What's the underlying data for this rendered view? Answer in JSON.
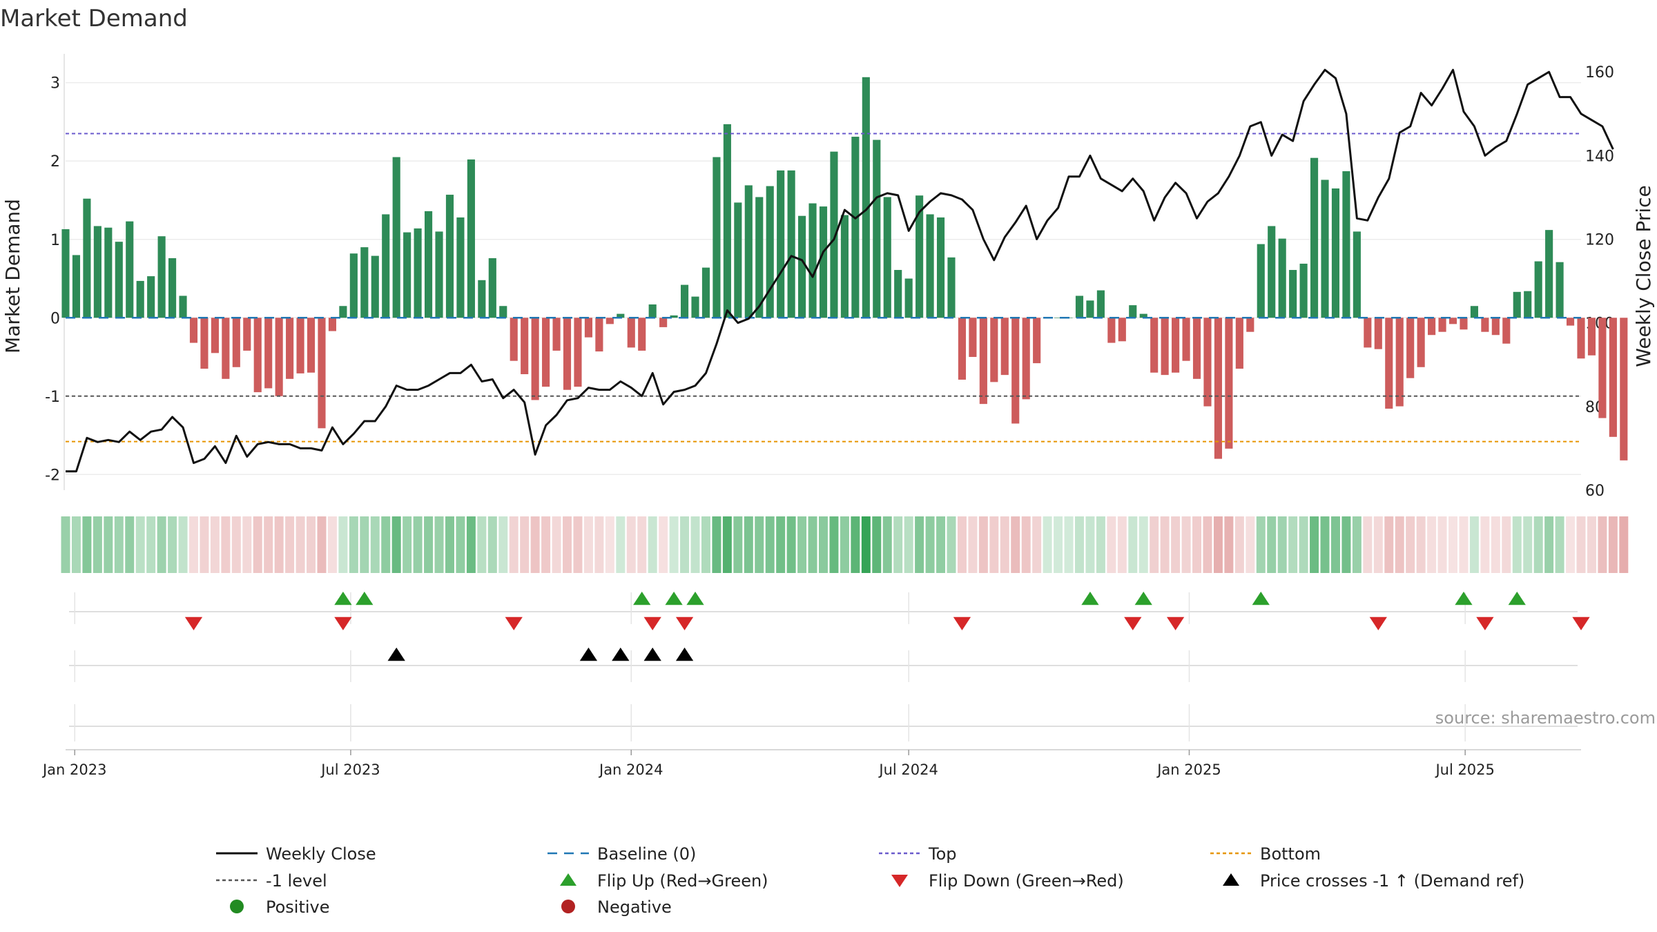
{
  "title": "Market Demand",
  "source": "source: sharemaestro.com",
  "colors": {
    "pos_bar": "#2e8b57",
    "neg_bar": "#cd5c5c",
    "price": "#111111",
    "baseline": "#1f77b4",
    "top": "#6a5acd",
    "minus1": "#555555",
    "bottom": "#e69500",
    "flip_up": "#2ca02c",
    "flip_down": "#d62728",
    "cross": "#000000",
    "positive_dot": "#228b22",
    "negative_dot": "#b22222"
  },
  "chart_data": {
    "type": "bar",
    "title": "Market Demand",
    "ylabel": "Market Demand",
    "y2label": "Weekly Close Price",
    "ylim": [
      -2.2,
      3.35
    ],
    "y2lim": [
      60,
      164
    ],
    "yticks": [
      -2,
      -1,
      0,
      1,
      2,
      3
    ],
    "y2ticks": [
      60,
      80,
      100,
      120,
      140,
      160
    ],
    "x_start": "2022-12-26",
    "x_end": "2025-09-15",
    "xticks": [
      {
        "date": "2023-01-01",
        "label": "Jan 2023"
      },
      {
        "date": "2023-07-01",
        "label": "Jul 2023"
      },
      {
        "date": "2024-01-01",
        "label": "Jan 2024"
      },
      {
        "date": "2024-07-01",
        "label": "Jul 2024"
      },
      {
        "date": "2025-01-01",
        "label": "Jan 2025"
      },
      {
        "date": "2025-07-01",
        "label": "Jul 2025"
      }
    ],
    "first_week": "2022-12-26",
    "week_interval_days": 7,
    "demand": [
      1.13,
      0.8,
      1.52,
      1.17,
      1.15,
      0.97,
      1.23,
      0.47,
      0.53,
      1.04,
      0.76,
      0.28,
      -0.32,
      -0.65,
      -0.45,
      -0.78,
      -0.63,
      -0.42,
      -0.95,
      -0.9,
      -1.0,
      -0.78,
      -0.71,
      -0.7,
      -1.41,
      -0.17,
      0.15,
      0.82,
      0.9,
      0.79,
      1.32,
      2.05,
      1.09,
      1.14,
      1.36,
      1.1,
      1.57,
      1.28,
      2.02,
      0.48,
      0.76,
      0.15,
      -0.55,
      -0.72,
      -1.05,
      -0.88,
      -0.42,
      -0.92,
      -0.88,
      -0.25,
      -0.43,
      -0.08,
      0.05,
      -0.38,
      -0.42,
      0.17,
      -0.12,
      0.03,
      0.42,
      0.27,
      0.64,
      2.05,
      2.47,
      1.47,
      1.69,
      1.54,
      1.68,
      1.88,
      1.88,
      1.3,
      1.46,
      1.42,
      2.12,
      1.31,
      2.31,
      3.07,
      2.27,
      1.54,
      0.61,
      0.5,
      1.56,
      1.32,
      1.28,
      0.77,
      -0.79,
      -0.5,
      -1.1,
      -0.82,
      -0.73,
      -1.35,
      -1.04,
      -0.58,
      0.0,
      0.0,
      0.0,
      0.28,
      0.22,
      0.35,
      -0.32,
      -0.3,
      0.16,
      0.05,
      -0.7,
      -0.73,
      -0.7,
      -0.55,
      -0.78,
      -1.13,
      -1.8,
      -1.67,
      -0.65,
      -0.18,
      0.94,
      1.17,
      1.01,
      0.61,
      0.69,
      2.04,
      1.76,
      1.65,
      1.87,
      1.1,
      -0.38,
      -0.4,
      -1.16,
      -1.13,
      -0.77,
      -0.63,
      -0.22,
      -0.18,
      -0.08,
      -0.15,
      0.15,
      -0.18,
      -0.22,
      -0.33,
      0.33,
      0.34,
      0.72,
      1.12,
      0.71,
      -0.1,
      -0.52,
      -0.48,
      -1.28,
      -1.52,
      -1.82
    ],
    "price": [
      64.5,
      64.5,
      72.5,
      71.5,
      72.0,
      71.5,
      74.0,
      72.0,
      74.0,
      74.5,
      77.5,
      75.0,
      66.5,
      67.5,
      70.5,
      66.5,
      73.0,
      68.0,
      71.0,
      71.5,
      71.0,
      71.0,
      70.0,
      70.0,
      69.5,
      75.0,
      71.0,
      73.5,
      76.5,
      76.5,
      80.0,
      85.0,
      84.0,
      84.0,
      85.0,
      86.5,
      88.0,
      88.0,
      90.0,
      86.0,
      86.5,
      82.0,
      84.0,
      81.0,
      68.5,
      75.5,
      78.0,
      81.5,
      82.0,
      84.5,
      84.0,
      84.0,
      86.0,
      84.5,
      82.5,
      88.0,
      80.5,
      83.5,
      84.0,
      85.0,
      88.0,
      95.0,
      103.0,
      100.0,
      101.0,
      104.0,
      108.0,
      112.0,
      116.0,
      115.0,
      111.0,
      117.0,
      120.0,
      127.0,
      125.0,
      127.0,
      130.0,
      131.0,
      130.5,
      122.0,
      126.5,
      129.0,
      131.0,
      130.5,
      129.5,
      127.0,
      120.0,
      115.0,
      120.5,
      124.0,
      128.0,
      120.0,
      124.5,
      127.5,
      135.0,
      135.0,
      140.0,
      134.5,
      133.0,
      131.5,
      134.5,
      131.5,
      124.5,
      130.0,
      133.5,
      131.0,
      125.0,
      129.0,
      131.0,
      135.0,
      140.0,
      147.0,
      148.0,
      140.0,
      145.0,
      143.5,
      153.0,
      157.0,
      160.5,
      158.5,
      150.0,
      125.0,
      124.5,
      130.0,
      134.5,
      145.5,
      147.0,
      155.0,
      152.0,
      156.0,
      160.5,
      150.5,
      147.0,
      140.0,
      142.0,
      143.5,
      150.0,
      157.0,
      158.5,
      160.0,
      154.0,
      154.0,
      150.0,
      148.5,
      147.0,
      141.5
    ],
    "top_level": 2.35,
    "minus1_level": -1.0,
    "bottom_level": -1.58,
    "baseline_level": 0,
    "flip_up_weeks": [
      26,
      28,
      54,
      57,
      59,
      96,
      101,
      112,
      131,
      136
    ],
    "flip_down_weeks": [
      12,
      26,
      42,
      55,
      58,
      84,
      100,
      104,
      123,
      133,
      142
    ],
    "price_cross_weeks": [
      31,
      49,
      52,
      55,
      58
    ],
    "legend": [
      {
        "label": "Weekly Close",
        "symbol": "line-solid",
        "color_key": "price"
      },
      {
        "label": "Baseline (0)",
        "symbol": "line-dash",
        "color_key": "baseline"
      },
      {
        "label": "Top",
        "symbol": "line-dot",
        "color_key": "top"
      },
      {
        "label": "Bottom",
        "symbol": "line-dot",
        "color_key": "bottom"
      },
      {
        "label": "-1 level",
        "symbol": "line-dot",
        "color_key": "minus1"
      },
      {
        "label": "Flip Up (Red→Green)",
        "symbol": "tri-up",
        "color_key": "flip_up"
      },
      {
        "label": "Flip Down (Green→Red)",
        "symbol": "tri-down",
        "color_key": "flip_down"
      },
      {
        "label": "Price crosses -1 ↑ (Demand ref)",
        "symbol": "tri-up",
        "color_key": "cross"
      },
      {
        "label": "Positive",
        "symbol": "dot",
        "color_key": "positive_dot"
      },
      {
        "label": "Negative",
        "symbol": "dot",
        "color_key": "negative_dot"
      }
    ]
  }
}
